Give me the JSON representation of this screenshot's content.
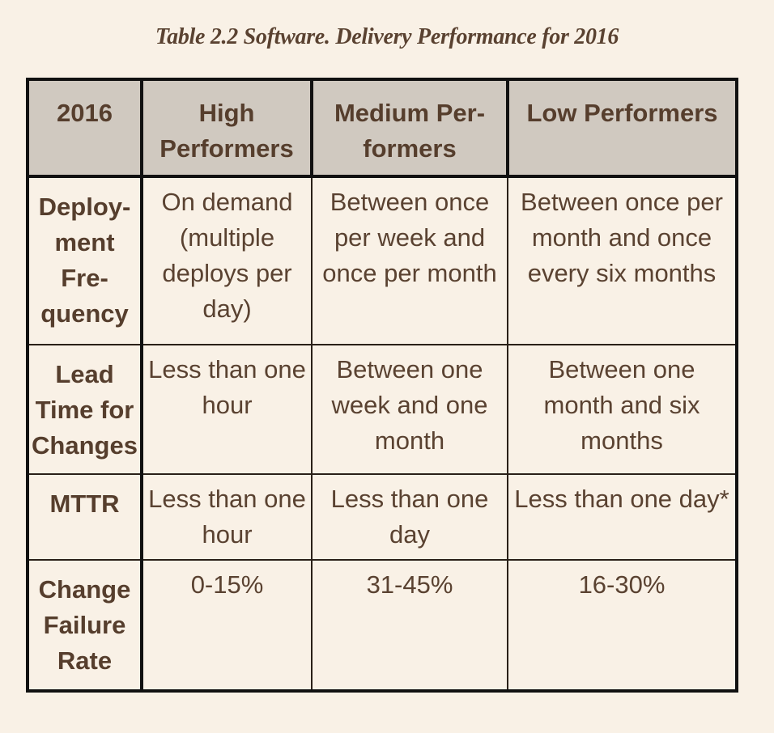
{
  "caption": "Table 2.2 Software. Delivery Performance for 2016",
  "table": {
    "headers": [
      "2016",
      "High Performers",
      "Medium Per-formers",
      "Low Performers"
    ],
    "rows": [
      {
        "label": "Deploy-ment Fre-quency",
        "high": "On demand (multiple deploys per day)",
        "medium": "Between once per week and once per month",
        "low": "Between once per month and once every six months"
      },
      {
        "label": "Lead Time for Changes",
        "high": "Less than one hour",
        "medium": "Between one week and one month",
        "low": "Between one month and six months"
      },
      {
        "label": "MTTR",
        "high": "Less than one hour",
        "medium": "Less than one day",
        "low": "Less than one day*"
      },
      {
        "label": "Change Failure Rate",
        "high": "0-15%",
        "medium": "31-45%",
        "low": "16-30%"
      }
    ]
  },
  "colors": {
    "background": "#f9f1e6",
    "header_fill": "#d0c9c0",
    "text": "#5a4231",
    "border": "#111111"
  }
}
